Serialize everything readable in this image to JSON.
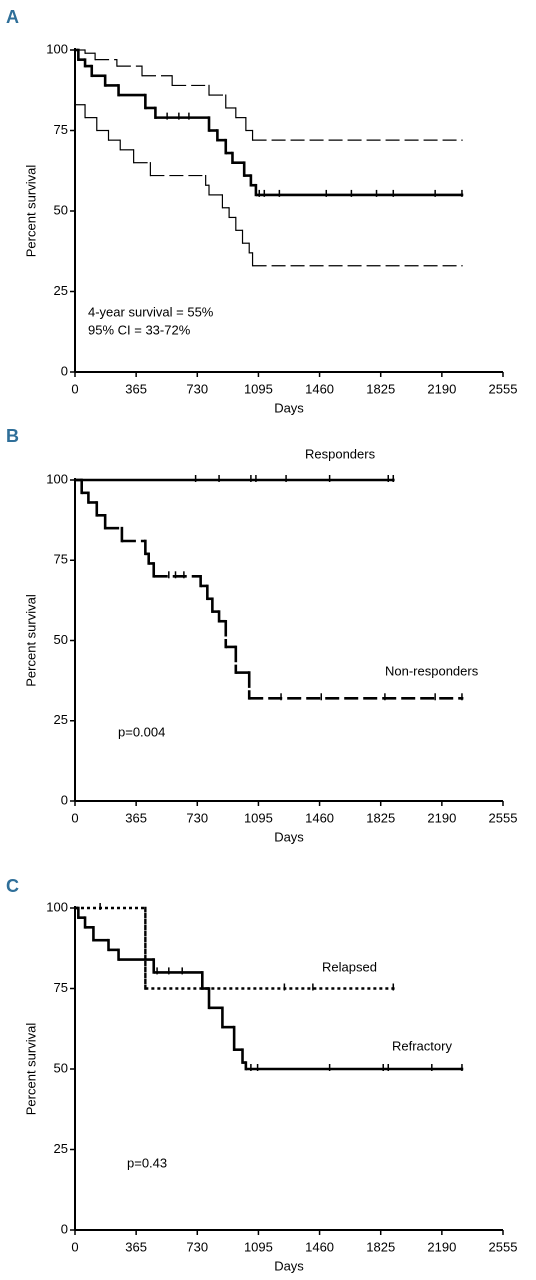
{
  "chart_data": [
    {
      "type": "line",
      "drawstyle": "steps-post",
      "panel": "A",
      "xlabel": "Days",
      "ylabel": "Percent survival",
      "xlim": [
        0,
        2555
      ],
      "xticks": [
        0,
        365,
        730,
        1095,
        1460,
        1825,
        2190,
        2555
      ],
      "ylim": [
        0,
        100
      ],
      "yticks": [
        0,
        25,
        50,
        75,
        100
      ],
      "annotations": [
        "4-year survival = 55%",
        "95% CI = 33-72%"
      ],
      "series": [
        {
          "color": "#000000",
          "linestyle": "dashed",
          "linewidth": 1.2,
          "x": [
            0,
            60,
            120,
            250,
            400,
            580,
            800,
            900,
            960,
            1020,
            1060,
            2310
          ],
          "values": [
            100,
            99,
            97,
            95,
            92,
            89,
            86,
            82,
            79,
            75,
            72,
            72
          ],
          "censored": []
        },
        {
          "color": "#000000",
          "linestyle": "solid",
          "linewidth": 2.6,
          "x": [
            0,
            20,
            60,
            100,
            180,
            260,
            420,
            480,
            800,
            850,
            900,
            940,
            1010,
            1050,
            1080,
            2310
          ],
          "values": [
            100,
            97,
            95,
            92,
            89,
            86,
            82,
            79,
            75,
            72,
            68,
            65,
            61,
            58,
            55,
            55
          ],
          "censored": [
            550,
            620,
            680,
            1100,
            1130,
            1220,
            1500,
            1650,
            1800,
            1900,
            2150,
            2310
          ]
        },
        {
          "color": "#000000",
          "linestyle": "dashed",
          "linewidth": 1.2,
          "x": [
            0,
            60,
            130,
            200,
            270,
            350,
            450,
            780,
            800,
            880,
            920,
            960,
            1000,
            1040,
            1060,
            2310
          ],
          "values": [
            83,
            79,
            75,
            72,
            69,
            65,
            61,
            58,
            55,
            51,
            48,
            44,
            40,
            37,
            33,
            33
          ],
          "censored": []
        }
      ]
    },
    {
      "type": "line",
      "drawstyle": "steps-post",
      "panel": "B",
      "xlabel": "Days",
      "ylabel": "Percent survival",
      "xlim": [
        0,
        2555
      ],
      "xticks": [
        0,
        365,
        730,
        1095,
        1460,
        1825,
        2190,
        2555
      ],
      "ylim": [
        0,
        100
      ],
      "yticks": [
        0,
        25,
        50,
        75,
        100
      ],
      "annotations": [
        "p=0.004"
      ],
      "series": [
        {
          "name": "Responders",
          "color": "#000000",
          "linestyle": "solid",
          "linewidth": 2.6,
          "x": [
            0,
            1900
          ],
          "values": [
            100,
            100
          ],
          "censored": [
            720,
            860,
            1050,
            1080,
            1260,
            1520,
            1870,
            1900
          ]
        },
        {
          "name": "Non-responders",
          "color": "#000000",
          "linestyle": "dashed",
          "linewidth": 2.6,
          "x": [
            0,
            40,
            80,
            130,
            180,
            280,
            420,
            440,
            470,
            750,
            790,
            820,
            860,
            900,
            960,
            1040,
            2310
          ],
          "values": [
            100,
            96,
            93,
            89,
            85,
            81,
            77,
            74,
            70,
            67,
            63,
            59,
            56,
            48,
            40,
            32,
            32
          ],
          "censored": [
            560,
            600,
            650,
            1230,
            1470,
            1850,
            2150,
            2310
          ]
        }
      ]
    },
    {
      "type": "line",
      "drawstyle": "steps-post",
      "panel": "C",
      "xlabel": "Days",
      "ylabel": "Percent survival",
      "xlim": [
        0,
        2555
      ],
      "xticks": [
        0,
        365,
        730,
        1095,
        1460,
        1825,
        2190,
        2555
      ],
      "ylim": [
        0,
        100
      ],
      "yticks": [
        0,
        25,
        50,
        75,
        100
      ],
      "annotations": [
        "p=0.43"
      ],
      "series": [
        {
          "name": "Relapsed",
          "color": "#000000",
          "linestyle": "dotted",
          "linewidth": 2.4,
          "x": [
            0,
            420,
            1900
          ],
          "values": [
            100,
            75,
            75
          ],
          "censored": [
            150,
            1250,
            1420,
            1900
          ]
        },
        {
          "name": "Refractory",
          "color": "#000000",
          "linestyle": "solid",
          "linewidth": 2.6,
          "x": [
            0,
            20,
            60,
            110,
            200,
            260,
            470,
            760,
            800,
            880,
            950,
            1000,
            1020,
            2310
          ],
          "values": [
            100,
            97,
            94,
            90,
            87,
            84,
            80,
            75,
            69,
            63,
            56,
            52,
            50,
            50
          ],
          "censored": [
            490,
            560,
            640,
            1050,
            1090,
            1520,
            1840,
            1870,
            2130,
            2310
          ]
        }
      ]
    }
  ]
}
